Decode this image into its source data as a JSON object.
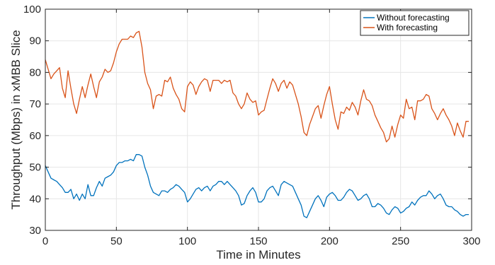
{
  "chart_data": {
    "type": "line",
    "title": "",
    "xlabel": "Time in Minutes",
    "ylabel": "Throughput (Mbps) in xMBB Slice",
    "xlim": [
      0,
      300
    ],
    "ylim": [
      30,
      100
    ],
    "xticks": [
      0,
      50,
      100,
      150,
      200,
      250,
      300
    ],
    "yticks": [
      30,
      40,
      50,
      60,
      70,
      80,
      90,
      100
    ],
    "grid": true,
    "legend_position": "top-right",
    "series": [
      {
        "name": "Without forecasting",
        "color": "#0072BD",
        "x": [
          0,
          2,
          4,
          6,
          8,
          10,
          12,
          14,
          16,
          18,
          20,
          22,
          24,
          26,
          28,
          30,
          32,
          34,
          36,
          38,
          40,
          42,
          44,
          46,
          48,
          50,
          52,
          54,
          56,
          58,
          60,
          62,
          64,
          66,
          68,
          70,
          72,
          74,
          76,
          78,
          80,
          82,
          84,
          86,
          88,
          90,
          92,
          94,
          96,
          98,
          100,
          102,
          104,
          106,
          108,
          110,
          112,
          114,
          116,
          118,
          120,
          122,
          124,
          126,
          128,
          130,
          132,
          134,
          136,
          138,
          140,
          142,
          144,
          146,
          148,
          150,
          152,
          154,
          156,
          158,
          160,
          162,
          164,
          166,
          168,
          170,
          172,
          174,
          176,
          178,
          180,
          182,
          184,
          186,
          188,
          190,
          192,
          194,
          196,
          198,
          200,
          202,
          204,
          206,
          208,
          210,
          212,
          214,
          216,
          218,
          220,
          222,
          224,
          226,
          228,
          230,
          232,
          234,
          236,
          238,
          240,
          242,
          244,
          246,
          248,
          250,
          252,
          254,
          256,
          258,
          260,
          262,
          264,
          266,
          268,
          270,
          272,
          274,
          276,
          278,
          280,
          282,
          284,
          286,
          288,
          290,
          292,
          294,
          296,
          298
        ],
        "values": [
          50.5,
          48.5,
          46.5,
          46,
          45.5,
          44.5,
          43.5,
          42,
          42,
          43,
          40,
          41.5,
          39.5,
          41.5,
          40,
          44.5,
          41,
          41,
          43.5,
          45.5,
          44,
          46.5,
          47,
          47.5,
          48.5,
          50.5,
          51.5,
          51.5,
          52,
          52,
          52.5,
          52,
          54,
          54,
          53.5,
          50,
          47.5,
          44,
          42,
          41.5,
          41,
          42.5,
          42.5,
          42,
          43,
          43.5,
          44.5,
          44,
          43,
          42,
          39,
          40,
          41.5,
          43,
          43.5,
          42.5,
          43.5,
          44,
          42.5,
          44,
          44.5,
          45.5,
          45.5,
          44.5,
          45.5,
          44.5,
          43.5,
          42.5,
          41,
          38,
          38.5,
          41,
          42.5,
          43.5,
          42,
          39,
          39,
          40,
          42.5,
          43.5,
          44,
          42.5,
          41,
          44.5,
          45.5,
          45,
          44.5,
          44,
          42,
          40,
          38,
          34.5,
          34,
          36,
          38,
          40,
          41,
          39.5,
          37.5,
          40.5,
          41.5,
          42,
          41,
          39.5,
          39.5,
          40.5,
          42,
          43,
          42.5,
          41,
          39.5,
          40,
          41,
          41.5,
          40,
          37.5,
          37.5,
          38.5,
          38,
          37,
          35.5,
          35,
          36.5,
          37.5,
          37,
          35.5,
          36,
          37,
          37.5,
          39,
          38,
          39.5,
          40.5,
          41,
          41,
          42.5,
          41.5,
          40,
          41,
          41.5,
          40,
          38,
          37.5,
          37.5,
          36.5,
          36,
          35,
          34.5,
          35,
          35
        ]
      },
      {
        "name": "With forecasting",
        "color": "#D95319",
        "x": [
          0,
          2,
          4,
          6,
          8,
          10,
          12,
          14,
          16,
          18,
          20,
          22,
          24,
          26,
          28,
          30,
          32,
          34,
          36,
          38,
          40,
          42,
          44,
          46,
          48,
          50,
          52,
          54,
          56,
          58,
          60,
          62,
          64,
          66,
          68,
          70,
          72,
          74,
          76,
          78,
          80,
          82,
          84,
          86,
          88,
          90,
          92,
          94,
          96,
          98,
          100,
          102,
          104,
          106,
          108,
          110,
          112,
          114,
          116,
          118,
          120,
          122,
          124,
          126,
          128,
          130,
          132,
          134,
          136,
          138,
          140,
          142,
          144,
          146,
          148,
          150,
          152,
          154,
          156,
          158,
          160,
          162,
          164,
          166,
          168,
          170,
          172,
          174,
          176,
          178,
          180,
          182,
          184,
          186,
          188,
          190,
          192,
          194,
          196,
          198,
          200,
          202,
          204,
          206,
          208,
          210,
          212,
          214,
          216,
          218,
          220,
          222,
          224,
          226,
          228,
          230,
          232,
          234,
          236,
          238,
          240,
          242,
          244,
          246,
          248,
          250,
          252,
          254,
          256,
          258,
          260,
          262,
          264,
          266,
          268,
          270,
          272,
          274,
          276,
          278,
          280,
          282,
          284,
          286,
          288,
          290,
          292,
          294,
          296,
          298
        ],
        "values": [
          84,
          81,
          78,
          79.5,
          80.5,
          81.5,
          75,
          72,
          80.5,
          75,
          70,
          67,
          71.5,
          75.5,
          72,
          76,
          79.5,
          75.5,
          72,
          77,
          78.5,
          81,
          80,
          80.5,
          83,
          86.5,
          89,
          90.5,
          90.5,
          90.5,
          91.5,
          91,
          92.5,
          93,
          88,
          80,
          76.5,
          74.5,
          68.5,
          72.5,
          73,
          72.5,
          77.5,
          77,
          78.5,
          75,
          73,
          71.5,
          68.5,
          67.5,
          75.5,
          77,
          76,
          73,
          75.5,
          77,
          78,
          77.5,
          74,
          77.5,
          77.5,
          77.5,
          76.5,
          77.5,
          77,
          77.5,
          73.5,
          72.5,
          70,
          68.5,
          70,
          73.5,
          71.5,
          70.5,
          71,
          66.5,
          67.5,
          68,
          71.5,
          75,
          78,
          76.5,
          74,
          76.5,
          77.5,
          75,
          77,
          76,
          73,
          70,
          66,
          61,
          60,
          63.5,
          66,
          68.5,
          69.5,
          65.5,
          69.5,
          73,
          75.5,
          70,
          65,
          62,
          67.5,
          67,
          69,
          68,
          70.5,
          69,
          66.5,
          71,
          74.5,
          71.5,
          71,
          69.5,
          66.5,
          64.5,
          62.5,
          61,
          58,
          59,
          63,
          59.5,
          63.5,
          66.5,
          65.5,
          71.5,
          68.5,
          69,
          65,
          71,
          71,
          71.5,
          73,
          72.5,
          68.5,
          67,
          65,
          67,
          68.5,
          66.5,
          65,
          63,
          60,
          64,
          61.5,
          59.5,
          64.5,
          64.5
        ]
      }
    ]
  }
}
